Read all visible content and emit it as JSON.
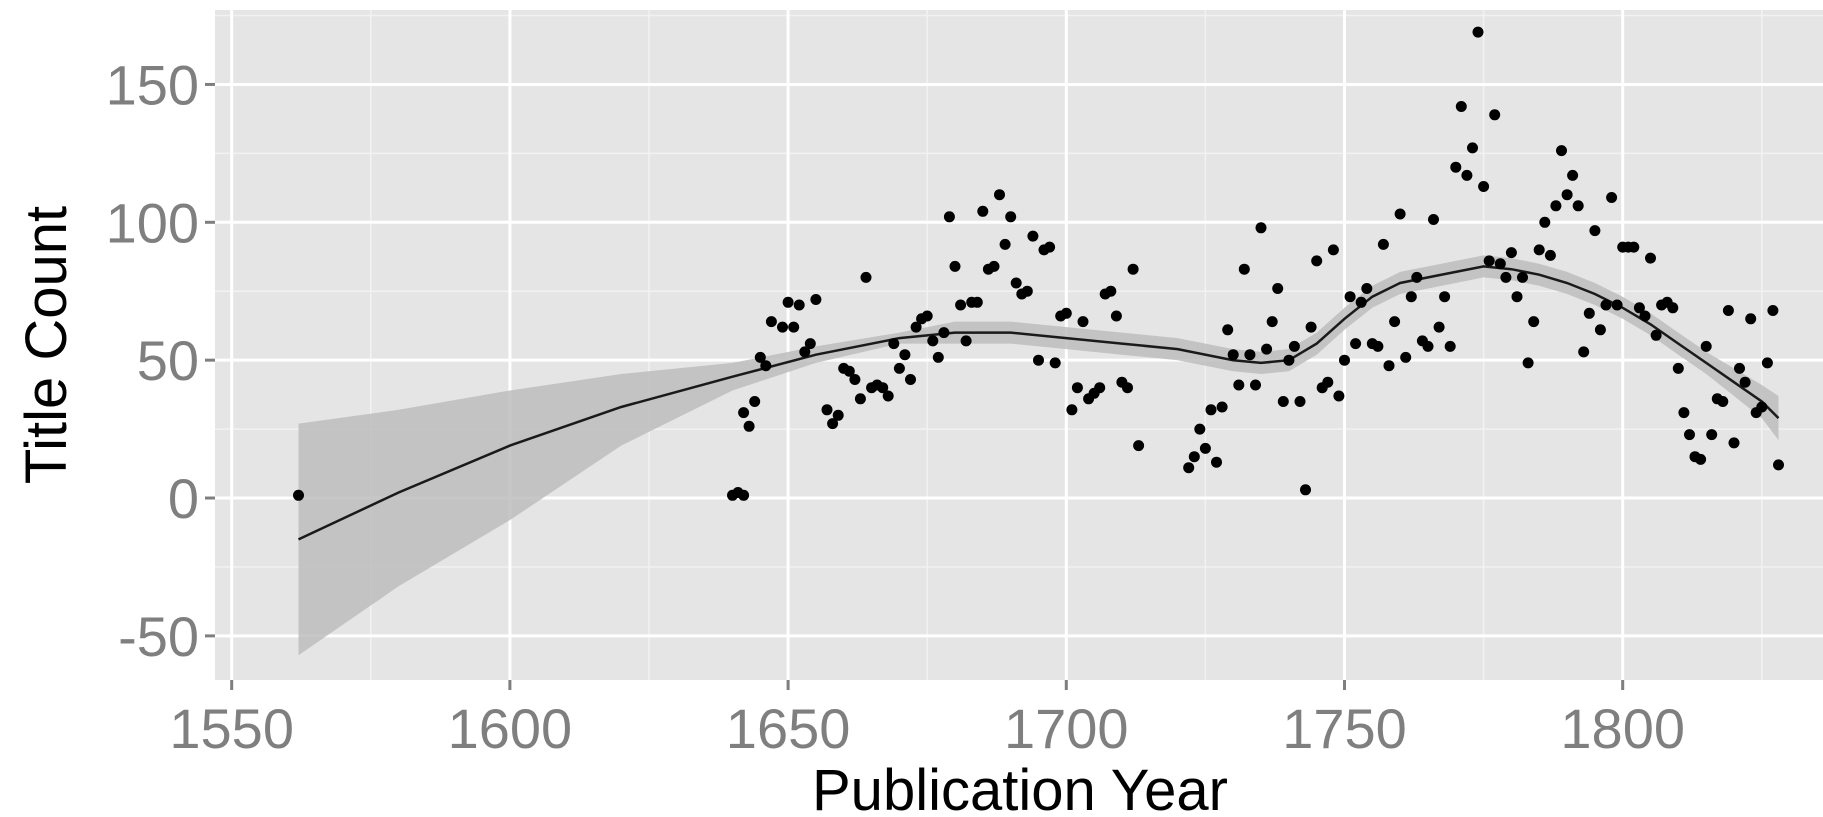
{
  "chart_data": {
    "type": "scatter",
    "title": "",
    "xlabel": "Publication Year",
    "ylabel": "Title Count",
    "xlim": [
      1547,
      1836
    ],
    "ylim": [
      -66,
      177
    ],
    "x_ticks": [
      1550,
      1600,
      1650,
      1700,
      1750,
      1800
    ],
    "y_ticks": [
      -50,
      0,
      50,
      100,
      150
    ],
    "grid": true,
    "legend": "none",
    "colors": {
      "panel": "#e5e5e5",
      "grid": "#ffffff",
      "points": "#000000",
      "smooth_line": "#1a1a1a",
      "confidence_band": "#bdbdbd"
    },
    "points": [
      [
        1562,
        1
      ],
      [
        1640,
        1
      ],
      [
        1641,
        2
      ],
      [
        1642,
        1
      ],
      [
        1642,
        31
      ],
      [
        1643,
        26
      ],
      [
        1644,
        35
      ],
      [
        1645,
        51
      ],
      [
        1646,
        48
      ],
      [
        1647,
        64
      ],
      [
        1649,
        62
      ],
      [
        1650,
        71
      ],
      [
        1651,
        62
      ],
      [
        1652,
        70
      ],
      [
        1653,
        53
      ],
      [
        1654,
        56
      ],
      [
        1655,
        72
      ],
      [
        1657,
        32
      ],
      [
        1658,
        27
      ],
      [
        1659,
        30
      ],
      [
        1660,
        47
      ],
      [
        1661,
        46
      ],
      [
        1662,
        43
      ],
      [
        1663,
        36
      ],
      [
        1664,
        80
      ],
      [
        1665,
        40
      ],
      [
        1666,
        41
      ],
      [
        1667,
        40
      ],
      [
        1668,
        37
      ],
      [
        1669,
        56
      ],
      [
        1670,
        47
      ],
      [
        1671,
        52
      ],
      [
        1672,
        43
      ],
      [
        1673,
        62
      ],
      [
        1674,
        65
      ],
      [
        1675,
        66
      ],
      [
        1676,
        57
      ],
      [
        1677,
        51
      ],
      [
        1678,
        60
      ],
      [
        1679,
        102
      ],
      [
        1680,
        84
      ],
      [
        1681,
        70
      ],
      [
        1682,
        57
      ],
      [
        1683,
        71
      ],
      [
        1684,
        71
      ],
      [
        1685,
        104
      ],
      [
        1686,
        83
      ],
      [
        1687,
        84
      ],
      [
        1688,
        110
      ],
      [
        1689,
        92
      ],
      [
        1690,
        102
      ],
      [
        1691,
        78
      ],
      [
        1692,
        74
      ],
      [
        1693,
        75
      ],
      [
        1694,
        95
      ],
      [
        1695,
        50
      ],
      [
        1696,
        90
      ],
      [
        1697,
        91
      ],
      [
        1698,
        49
      ],
      [
        1699,
        66
      ],
      [
        1700,
        67
      ],
      [
        1701,
        32
      ],
      [
        1702,
        40
      ],
      [
        1703,
        64
      ],
      [
        1704,
        36
      ],
      [
        1705,
        38
      ],
      [
        1706,
        40
      ],
      [
        1707,
        74
      ],
      [
        1708,
        75
      ],
      [
        1709,
        66
      ],
      [
        1710,
        42
      ],
      [
        1711,
        40
      ],
      [
        1712,
        83
      ],
      [
        1713,
        19
      ],
      [
        1722,
        11
      ],
      [
        1723,
        15
      ],
      [
        1724,
        25
      ],
      [
        1725,
        18
      ],
      [
        1726,
        32
      ],
      [
        1727,
        13
      ],
      [
        1728,
        33
      ],
      [
        1729,
        61
      ],
      [
        1730,
        52
      ],
      [
        1731,
        41
      ],
      [
        1732,
        83
      ],
      [
        1733,
        52
      ],
      [
        1734,
        41
      ],
      [
        1735,
        98
      ],
      [
        1736,
        54
      ],
      [
        1737,
        64
      ],
      [
        1738,
        76
      ],
      [
        1739,
        35
      ],
      [
        1740,
        50
      ],
      [
        1741,
        55
      ],
      [
        1742,
        35
      ],
      [
        1743,
        3
      ],
      [
        1744,
        62
      ],
      [
        1745,
        86
      ],
      [
        1746,
        40
      ],
      [
        1747,
        42
      ],
      [
        1748,
        90
      ],
      [
        1749,
        37
      ],
      [
        1750,
        50
      ],
      [
        1751,
        73
      ],
      [
        1752,
        56
      ],
      [
        1753,
        71
      ],
      [
        1754,
        76
      ],
      [
        1755,
        56
      ],
      [
        1756,
        55
      ],
      [
        1757,
        92
      ],
      [
        1758,
        48
      ],
      [
        1759,
        64
      ],
      [
        1760,
        103
      ],
      [
        1761,
        51
      ],
      [
        1762,
        73
      ],
      [
        1763,
        80
      ],
      [
        1764,
        57
      ],
      [
        1765,
        55
      ],
      [
        1766,
        101
      ],
      [
        1767,
        62
      ],
      [
        1768,
        73
      ],
      [
        1769,
        55
      ],
      [
        1770,
        120
      ],
      [
        1771,
        142
      ],
      [
        1772,
        117
      ],
      [
        1773,
        127
      ],
      [
        1774,
        169
      ],
      [
        1775,
        113
      ],
      [
        1776,
        86
      ],
      [
        1777,
        139
      ],
      [
        1778,
        85
      ],
      [
        1779,
        80
      ],
      [
        1780,
        89
      ],
      [
        1781,
        73
      ],
      [
        1782,
        80
      ],
      [
        1783,
        49
      ],
      [
        1784,
        64
      ],
      [
        1785,
        90
      ],
      [
        1786,
        100
      ],
      [
        1787,
        88
      ],
      [
        1788,
        106
      ],
      [
        1789,
        126
      ],
      [
        1790,
        110
      ],
      [
        1791,
        117
      ],
      [
        1792,
        106
      ],
      [
        1793,
        53
      ],
      [
        1794,
        67
      ],
      [
        1795,
        97
      ],
      [
        1796,
        61
      ],
      [
        1797,
        70
      ],
      [
        1798,
        109
      ],
      [
        1799,
        70
      ],
      [
        1800,
        91
      ],
      [
        1801,
        91
      ],
      [
        1802,
        91
      ],
      [
        1803,
        69
      ],
      [
        1804,
        66
      ],
      [
        1805,
        87
      ],
      [
        1806,
        59
      ],
      [
        1807,
        70
      ],
      [
        1808,
        71
      ],
      [
        1809,
        69
      ],
      [
        1810,
        47
      ],
      [
        1811,
        31
      ],
      [
        1812,
        23
      ],
      [
        1813,
        15
      ],
      [
        1814,
        14
      ],
      [
        1815,
        55
      ],
      [
        1816,
        23
      ],
      [
        1817,
        36
      ],
      [
        1818,
        35
      ],
      [
        1819,
        68
      ],
      [
        1820,
        20
      ],
      [
        1821,
        47
      ],
      [
        1822,
        42
      ],
      [
        1823,
        65
      ],
      [
        1824,
        31
      ],
      [
        1825,
        33
      ],
      [
        1826,
        49
      ],
      [
        1827,
        68
      ],
      [
        1828,
        12
      ]
    ],
    "smooth": {
      "x": [
        1562,
        1580,
        1600,
        1620,
        1640,
        1655,
        1670,
        1680,
        1690,
        1700,
        1710,
        1720,
        1730,
        1735,
        1740,
        1745,
        1750,
        1755,
        1760,
        1765,
        1770,
        1775,
        1780,
        1785,
        1790,
        1795,
        1800,
        1805,
        1810,
        1815,
        1820,
        1825,
        1828
      ],
      "fit": [
        -15,
        2,
        19,
        33,
        44,
        52,
        58,
        60,
        60,
        58,
        56,
        54,
        50,
        49,
        50,
        56,
        65,
        73,
        78,
        80,
        82,
        84,
        83,
        81,
        78,
        74,
        69,
        63,
        56,
        49,
        42,
        35,
        29
      ],
      "lower": [
        -57,
        -32,
        -8,
        19,
        39,
        49,
        56,
        56,
        56,
        54,
        52,
        50,
        46,
        45,
        46,
        52,
        61,
        69,
        74,
        76,
        78,
        80,
        79,
        77,
        74,
        70,
        65,
        59,
        52,
        45,
        37,
        29,
        21
      ],
      "upper": [
        27,
        32,
        39,
        45,
        49,
        55,
        60,
        64,
        64,
        62,
        60,
        58,
        54,
        53,
        54,
        60,
        69,
        77,
        82,
        84,
        86,
        88,
        87,
        85,
        82,
        78,
        73,
        67,
        60,
        53,
        47,
        41,
        37
      ]
    }
  }
}
